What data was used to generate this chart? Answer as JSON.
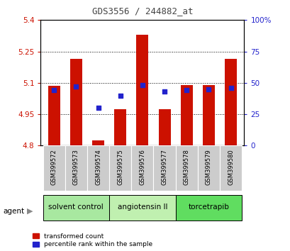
{
  "title": "GDS3556 / 244882_at",
  "samples": [
    "GSM399572",
    "GSM399573",
    "GSM399574",
    "GSM399575",
    "GSM399576",
    "GSM399577",
    "GSM399578",
    "GSM399579",
    "GSM399580"
  ],
  "red_values": [
    5.085,
    5.215,
    4.825,
    4.975,
    5.33,
    4.975,
    5.09,
    5.09,
    5.215
  ],
  "blue_values": [
    44,
    47,
    30,
    40,
    48,
    43,
    44,
    45,
    46
  ],
  "ylim_left": [
    4.8,
    5.4
  ],
  "ylim_right": [
    0,
    100
  ],
  "yticks_left": [
    4.8,
    4.95,
    5.1,
    5.25,
    5.4
  ],
  "yticks_right": [
    0,
    25,
    50,
    75,
    100
  ],
  "ytick_labels_left": [
    "4.8",
    "4.95",
    "5.1",
    "5.25",
    "5.4"
  ],
  "ytick_labels_right": [
    "0",
    "25",
    "50",
    "75",
    "100%"
  ],
  "groups": [
    {
      "label": "solvent control",
      "indices": [
        0,
        1,
        2
      ],
      "color": "#a8e8a0"
    },
    {
      "label": "angiotensin II",
      "indices": [
        3,
        4,
        5
      ],
      "color": "#c0f0b0"
    },
    {
      "label": "torcetrapib",
      "indices": [
        6,
        7,
        8
      ],
      "color": "#60dd60"
    }
  ],
  "bar_color": "#cc1100",
  "dot_color": "#2222cc",
  "bar_width": 0.55,
  "base_value": 4.8,
  "legend_items": [
    "transformed count",
    "percentile rank within the sample"
  ],
  "legend_colors": [
    "#cc1100",
    "#2222cc"
  ],
  "ylabel_left_color": "#cc1100",
  "ylabel_right_color": "#2222cc",
  "title_color": "#444444",
  "cell_color": "#cccccc",
  "cell_edge_color": "#ffffff"
}
